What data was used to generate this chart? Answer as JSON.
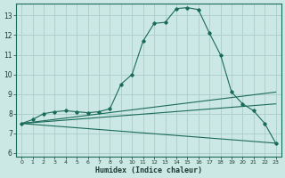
{
  "title": "",
  "xlabel": "Humidex (Indice chaleur)",
  "background_color": "#cce8e4",
  "grid_color": "#aaccc8",
  "line_color": "#1a6b5a",
  "xlim": [
    -0.5,
    23.5
  ],
  "ylim": [
    5.8,
    13.6
  ],
  "yticks": [
    6,
    7,
    8,
    9,
    10,
    11,
    12,
    13
  ],
  "xticks": [
    0,
    1,
    2,
    3,
    4,
    5,
    6,
    7,
    8,
    9,
    10,
    11,
    12,
    13,
    14,
    15,
    16,
    17,
    18,
    19,
    20,
    21,
    22,
    23
  ],
  "xtick_labels": [
    "0",
    "1",
    "2",
    "3",
    "4",
    "5",
    "6",
    "7",
    "8",
    "9",
    "10",
    "11",
    "12",
    "13",
    "14",
    "15",
    "16",
    "17",
    "18",
    "19",
    "20",
    "21",
    "22",
    "23"
  ],
  "main_line": {
    "x": [
      0,
      1,
      2,
      3,
      4,
      5,
      6,
      7,
      8,
      9,
      10,
      11,
      12,
      13,
      14,
      15,
      16,
      17,
      18,
      19,
      20,
      21,
      22,
      23
    ],
    "y": [
      7.5,
      7.7,
      8.0,
      8.1,
      8.15,
      8.1,
      8.05,
      8.1,
      8.25,
      9.5,
      10.0,
      11.7,
      12.6,
      12.65,
      13.35,
      13.4,
      13.3,
      12.1,
      11.0,
      9.1,
      8.5,
      8.15,
      7.5,
      6.5
    ]
  },
  "trend_lines": [
    {
      "x0": 0,
      "y0": 7.5,
      "x1": 23,
      "y1": 9.1
    },
    {
      "x0": 0,
      "y0": 7.5,
      "x1": 23,
      "y1": 8.5
    },
    {
      "x0": 0,
      "y0": 7.5,
      "x1": 23,
      "y1": 6.5
    }
  ]
}
